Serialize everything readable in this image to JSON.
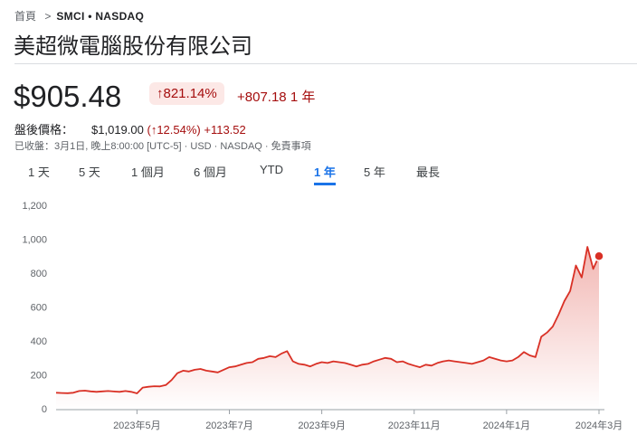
{
  "header": {
    "breadcrumb_home": "首頁",
    "breadcrumb_ticker": "SMCI • NASDAQ",
    "company": "美超微電腦股份有限公司"
  },
  "quote": {
    "price": "$905.48",
    "change_pct": "↑821.14%",
    "change_abs": "+807.18",
    "period": "1 年",
    "after_label": "盤後價格：",
    "after_price": "$1,019.00",
    "after_pct": "(↑12.54%)",
    "after_abs": "+113.52",
    "closed_label": "已收盤：",
    "closed_info": "3月1日, 晚上8:00:00 [UTC-5] · USD · NASDAQ · ",
    "disclaimer": "免責事項"
  },
  "tabs": {
    "items": [
      "1 天",
      "5 天",
      "1 個月",
      "6 個月",
      "YTD",
      "1 年",
      "5 年",
      "最長"
    ],
    "selected": 5
  },
  "chart_data": {
    "type": "area",
    "color": "#d93025",
    "grid": false,
    "categories": [
      null,
      null,
      null,
      null,
      null,
      null,
      null,
      null,
      null,
      null,
      null,
      null,
      null,
      null,
      "2023年5月",
      null,
      null,
      null,
      null,
      null,
      null,
      null,
      null,
      null,
      null,
      null,
      null,
      null,
      null,
      null,
      "2023年7月",
      null,
      null,
      null,
      null,
      null,
      null,
      null,
      null,
      null,
      null,
      null,
      null,
      null,
      null,
      null,
      "2023年9月",
      null,
      null,
      null,
      null,
      null,
      null,
      null,
      null,
      null,
      null,
      null,
      null,
      null,
      null,
      null,
      "2023年11月",
      null,
      null,
      null,
      null,
      null,
      null,
      null,
      null,
      null,
      null,
      null,
      null,
      null,
      null,
      null,
      "2024年1月",
      null,
      null,
      null,
      null,
      null,
      null,
      null,
      null,
      null,
      null,
      null,
      null,
      null,
      null,
      null,
      "2024年3月"
    ],
    "values": [
      100,
      98,
      97,
      100,
      110,
      112,
      108,
      105,
      108,
      110,
      107,
      105,
      110,
      105,
      96,
      130,
      135,
      138,
      137,
      145,
      175,
      215,
      230,
      225,
      235,
      240,
      230,
      225,
      220,
      235,
      250,
      255,
      265,
      275,
      280,
      300,
      305,
      315,
      310,
      330,
      345,
      285,
      270,
      265,
      255,
      270,
      280,
      275,
      285,
      280,
      275,
      265,
      255,
      265,
      270,
      285,
      295,
      305,
      300,
      280,
      285,
      270,
      260,
      250,
      265,
      260,
      275,
      285,
      290,
      285,
      280,
      275,
      270,
      280,
      290,
      310,
      300,
      290,
      285,
      290,
      310,
      340,
      320,
      310,
      430,
      455,
      490,
      560,
      640,
      700,
      850,
      780,
      960,
      830,
      905.48
    ],
    "ylim": [
      0,
      1200
    ],
    "yticks": [
      0,
      200,
      400,
      600,
      800,
      {
        "value": 1000,
        "label": "1,000"
      },
      {
        "value": 1200,
        "label": "1,200"
      }
    ]
  }
}
